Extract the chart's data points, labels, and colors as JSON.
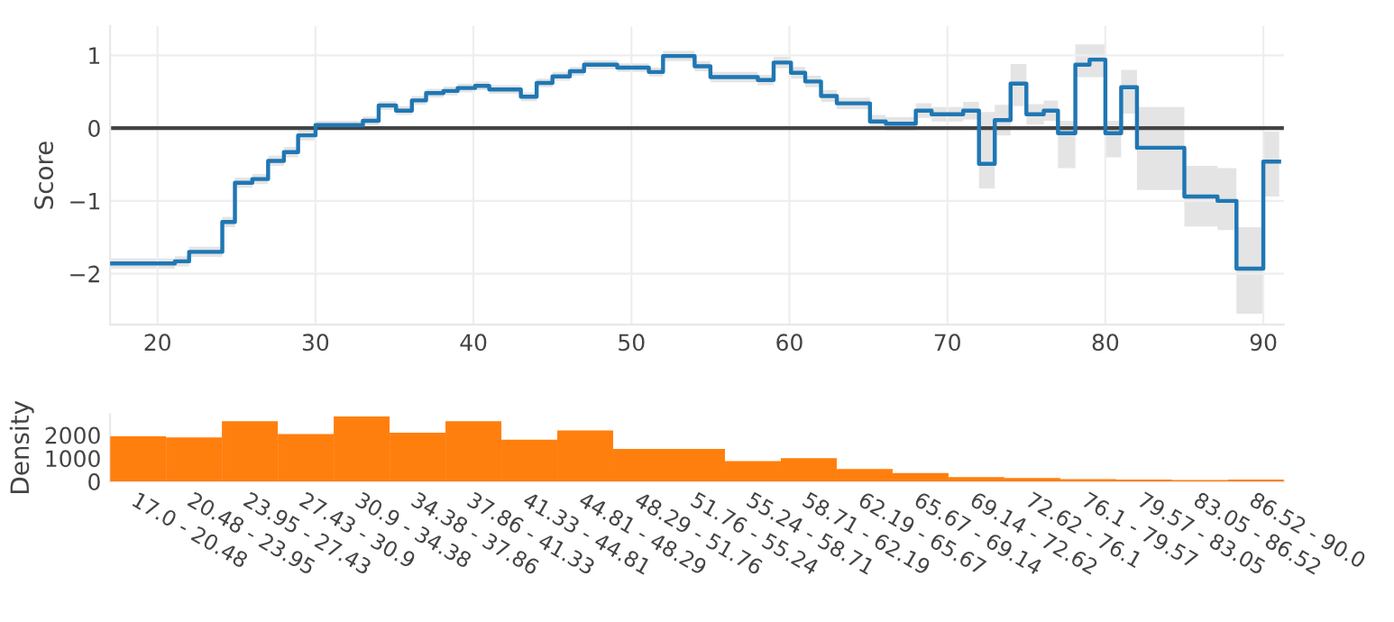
{
  "chart_data": [
    {
      "type": "step",
      "ylabel": "Score",
      "xlim": [
        17,
        91.3
      ],
      "xticks": [
        20,
        30,
        40,
        50,
        60,
        70,
        80,
        90
      ],
      "ylim": [
        -2.7,
        1.4
      ],
      "yticks": [
        {
          "value": -2,
          "label": "−2"
        },
        {
          "value": -1,
          "label": "−1"
        },
        0,
        1
      ],
      "grid": true,
      "x": [
        17,
        21.1,
        22,
        24.1,
        24.9,
        26,
        27,
        28,
        28.9,
        30,
        33,
        34,
        35.1,
        36.1,
        37,
        38.1,
        39,
        40.1,
        41,
        43,
        44,
        45,
        46.1,
        47,
        49.1,
        51.1,
        52,
        54,
        55,
        58,
        59,
        60.1,
        61,
        62,
        63,
        65.1,
        66.1,
        68,
        69,
        71,
        72,
        73,
        74,
        75,
        76.1,
        77,
        78.1,
        79,
        80,
        81,
        82,
        85,
        87.1,
        88.3,
        90,
        91
      ],
      "series": [
        {
          "color": "#1f77b4",
          "values": [
            -1.86,
            -1.83,
            -1.7,
            -1.29,
            -0.75,
            -0.7,
            -0.45,
            -0.33,
            -0.1,
            0.04,
            0.1,
            0.31,
            0.24,
            0.38,
            0.48,
            0.51,
            0.55,
            0.58,
            0.53,
            0.43,
            0.62,
            0.71,
            0.78,
            0.87,
            0.83,
            0.77,
            0.99,
            0.85,
            0.7,
            0.66,
            0.9,
            0.76,
            0.64,
            0.44,
            0.34,
            0.09,
            0.06,
            0.24,
            0.19,
            0.24,
            -0.49,
            0.11,
            0.61,
            0.19,
            0.24,
            -0.07,
            0.87,
            0.94,
            -0.07,
            0.56,
            -0.27,
            -0.94,
            -1.0,
            -1.93,
            -0.46,
            -0.46
          ],
          "lower": [
            -1.93,
            -1.9,
            -1.77,
            -1.36,
            -0.82,
            -0.77,
            -0.52,
            -0.4,
            -0.17,
            -0.02,
            0.04,
            0.25,
            0.18,
            0.32,
            0.42,
            0.45,
            0.49,
            0.52,
            0.47,
            0.37,
            0.56,
            0.65,
            0.72,
            0.81,
            0.77,
            0.71,
            0.92,
            0.78,
            0.63,
            0.59,
            0.82,
            0.68,
            0.56,
            0.36,
            0.26,
            0.0,
            -0.03,
            0.14,
            0.09,
            0.12,
            -0.83,
            -0.1,
            0.3,
            0.05,
            0.1,
            -0.55,
            0.7,
            0.7,
            -0.4,
            0.2,
            -0.85,
            -1.35,
            -1.4,
            -2.55,
            -0.94,
            -0.94
          ],
          "upper": [
            -1.79,
            -1.76,
            -1.63,
            -1.22,
            -0.68,
            -0.63,
            -0.38,
            -0.26,
            -0.03,
            0.1,
            0.16,
            0.37,
            0.3,
            0.44,
            0.54,
            0.57,
            0.61,
            0.64,
            0.59,
            0.49,
            0.68,
            0.77,
            0.84,
            0.93,
            0.89,
            0.83,
            1.06,
            0.92,
            0.77,
            0.73,
            0.98,
            0.84,
            0.72,
            0.52,
            0.42,
            0.18,
            0.15,
            0.34,
            0.29,
            0.36,
            0.22,
            0.32,
            0.88,
            0.33,
            0.38,
            0.1,
            1.15,
            1.15,
            0.1,
            0.8,
            0.29,
            -0.52,
            -0.55,
            -1.36,
            -0.05,
            -0.05
          ]
        }
      ],
      "ref_lines": [
        {
          "axis": "y",
          "value": 0,
          "color": "#444444",
          "line_style": "solid"
        }
      ]
    },
    {
      "type": "bar",
      "ylabel": "Density",
      "ylim": [
        0,
        2900
      ],
      "yticks": [
        0,
        1000,
        2000
      ],
      "grid": false,
      "categories": [
        "17.0 - 20.48",
        "20.48 - 23.95",
        "23.95 - 27.43",
        "27.43 - 30.9",
        "30.9 - 34.38",
        "34.38 - 37.86",
        "37.86 - 41.33",
        "41.33 - 44.81",
        "44.81 - 48.29",
        "48.29 - 51.76",
        "51.76 - 55.24",
        "55.24 - 58.71",
        "58.71 - 62.19",
        "62.19 - 65.67",
        "65.67 - 69.14",
        "69.14 - 72.62",
        "72.62 - 76.1",
        "76.1 - 79.57",
        "79.57 - 83.05",
        "83.05 - 86.52",
        "86.52 - 90.0"
      ],
      "series": [
        {
          "color": "#ff7f0e",
          "values": [
            1950,
            1900,
            2600,
            2050,
            2800,
            2100,
            2600,
            1800,
            2200,
            1400,
            1400,
            880,
            1000,
            540,
            360,
            190,
            150,
            100,
            80,
            60,
            80
          ]
        }
      ]
    }
  ]
}
